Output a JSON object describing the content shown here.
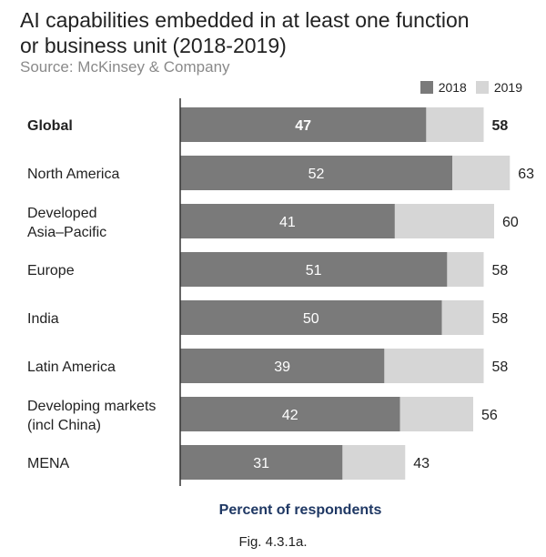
{
  "header": {
    "title_line1": "AI capabilities embedded in at least one function",
    "title_line2": "or business unit (2018-2019)",
    "source": "Source: McKinsey & Company"
  },
  "caption": "Fig. 4.3.1a.",
  "colors": {
    "s2018": "#7a7a7a",
    "s2019": "#d6d6d6",
    "axis": "#333333"
  },
  "chart_data": {
    "type": "bar",
    "orientation": "horizontal",
    "xlabel": "Percent of respondents",
    "categories": [
      [
        "Global"
      ],
      [
        "North America"
      ],
      [
        "Developed",
        "Asia–Pacific"
      ],
      [
        "Europe"
      ],
      [
        "India"
      ],
      [
        "Latin America"
      ],
      [
        "Developing markets",
        "(incl China)"
      ],
      [
        "MENA"
      ]
    ],
    "bold_category": "Global",
    "series": [
      {
        "name": "2018",
        "values": [
          47,
          52,
          41,
          51,
          50,
          39,
          42,
          31
        ]
      },
      {
        "name": "2019",
        "values": [
          58,
          63,
          60,
          58,
          58,
          58,
          56,
          43
        ]
      }
    ],
    "xlim": [
      0,
      100
    ],
    "legend_position": "top-right",
    "grid": false
  }
}
